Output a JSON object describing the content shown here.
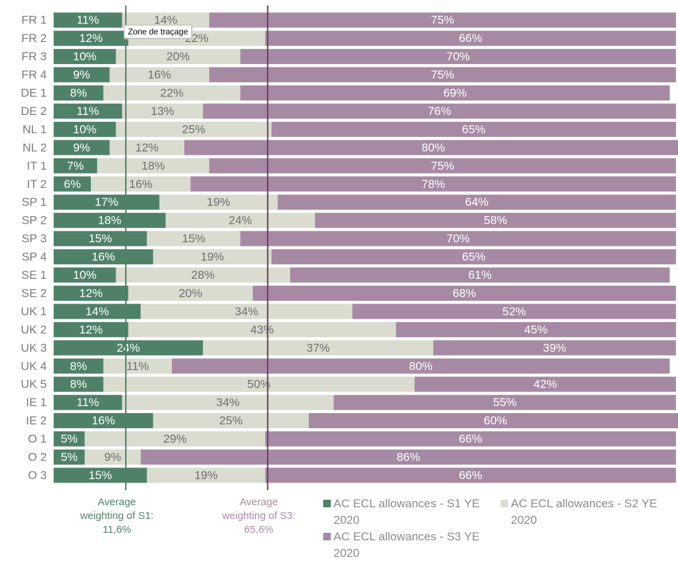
{
  "chart_data": {
    "type": "stacked_barh",
    "categories": [
      "FR 1",
      "FR 2",
      "FR 3",
      "FR 4",
      "DE 1",
      "DE 2",
      "NL 1",
      "NL 2",
      "IT 1",
      "IT 2",
      "SP 1",
      "SP 2",
      "SP 3",
      "SP 4",
      "SE 1",
      "SE 2",
      "UK 1",
      "UK 2",
      "UK 3",
      "UK 4",
      "UK 5",
      "IE 1",
      "IE 2",
      "O 1",
      "O 2",
      "O 3"
    ],
    "xlim": [
      0,
      100
    ],
    "series": [
      {
        "name": "AC ECL allowances - S1 YE 2020",
        "color": "#4f8169",
        "label_color": "#ffffff",
        "values": [
          11,
          12,
          10,
          9,
          8,
          11,
          10,
          9,
          7,
          6,
          17,
          18,
          15,
          16,
          10,
          12,
          14,
          12,
          24,
          8,
          8,
          11,
          16,
          5,
          5,
          15
        ],
        "value_labels": [
          "11%",
          "12%",
          "10%",
          "9%",
          "8%",
          "11%",
          "10%",
          "9%",
          "7%",
          "6%",
          "17%",
          "18%",
          "15%",
          "16%",
          "10%",
          "12%",
          "14%",
          "12%",
          "24%",
          "8%",
          "8%",
          "11%",
          "16%",
          "5%",
          "5%",
          "15%"
        ]
      },
      {
        "name": "AC ECL allowances - S2 YE 2020",
        "color": "#d9dccf",
        "label_color": "#6f6f6f",
        "values": [
          14,
          22,
          20,
          16,
          22,
          13,
          25,
          12,
          18,
          16,
          19,
          24,
          15,
          19,
          28,
          20,
          34,
          43,
          37,
          11,
          50,
          34,
          25,
          29,
          9,
          19
        ],
        "value_labels": [
          "14%",
          "22%",
          "20%",
          "16%",
          "22%",
          "13%",
          "25%",
          "12%",
          "18%",
          "16%",
          "19%",
          "24%",
          "15%",
          "19%",
          "28%",
          "20%",
          "34%",
          "43%",
          "37%",
          "11%",
          "50%",
          "34%",
          "25%",
          "29%",
          "9%",
          "19%"
        ]
      },
      {
        "name": "AC ECL allowances - S3 YE 2020",
        "color": "#a68aa4",
        "label_color": "#ffffff",
        "values": [
          75,
          66,
          70,
          75,
          69,
          76,
          65,
          80,
          75,
          78,
          64,
          58,
          70,
          65,
          61,
          68,
          52,
          45,
          39,
          80,
          42,
          55,
          60,
          66,
          86,
          66
        ],
        "value_labels": [
          "75%",
          "66%",
          "70%",
          "75%",
          "69%",
          "76%",
          "65%",
          "80%",
          "75%",
          "78%",
          "64%",
          "58%",
          "70%",
          "65%",
          "61%",
          "68%",
          "52%",
          "45%",
          "39%",
          "80%",
          "42%",
          "55%",
          "60%",
          "66%",
          "86%",
          "66%"
        ]
      }
    ],
    "annotations": [
      {
        "text": "Average weighting of S1: 11,6%",
        "value": 11.6,
        "color": "#4f8169",
        "from": "left"
      },
      {
        "text": "Average weighting of S3: 65,6%",
        "value": 65.6,
        "color": "#a68aa4",
        "line_color": "#6b3b5e",
        "from": "right"
      }
    ],
    "tooltip": "Zone de traçage"
  }
}
